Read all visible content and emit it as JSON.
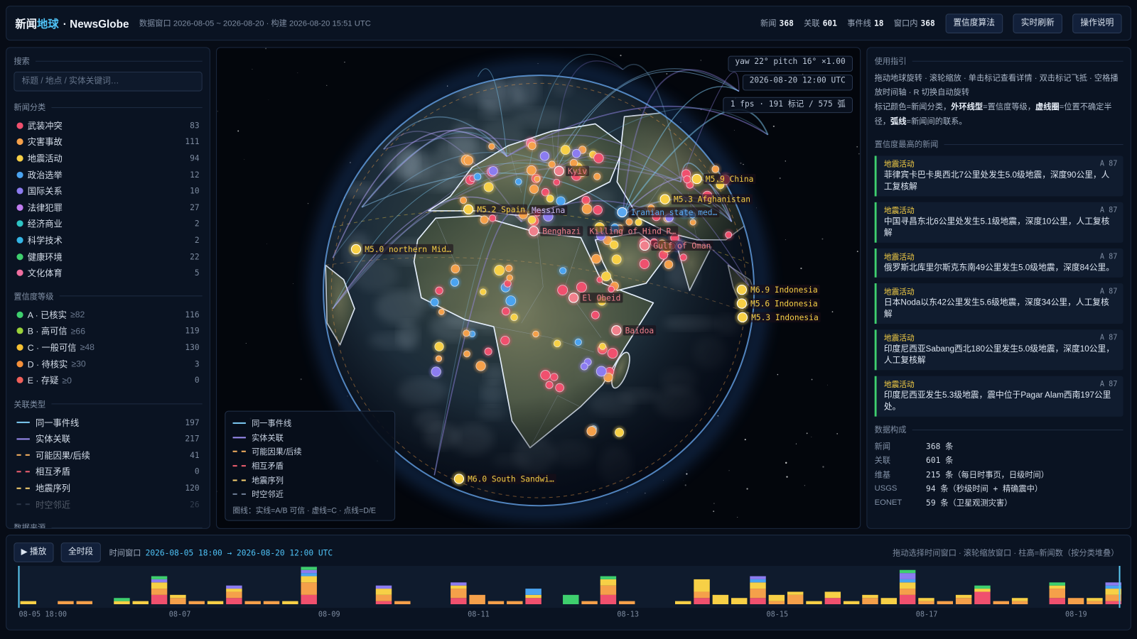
{
  "header": {
    "brand_a": "新闻",
    "brand_b": "地球",
    "brand_c": "· NewsGlobe",
    "meta": "数据窗口 2026-08-05 ~ 2026-08-20 · 构建 2026-08-20 15:51 UTC",
    "stats": [
      {
        "label": "新闻",
        "value": 368
      },
      {
        "label": "关联",
        "value": 601
      },
      {
        "label": "事件线",
        "value": 18
      },
      {
        "label": "窗口内",
        "value": 368
      }
    ],
    "buttons": [
      "置信度算法",
      "实时刷新",
      "操作说明"
    ]
  },
  "left": {
    "search_title": "搜索",
    "search_placeholder": "标题 / 地点 / 实体关键词…",
    "categories": {
      "title": "新闻分类",
      "items": [
        {
          "name": "武装冲突",
          "count": 83,
          "color": "#f0506e"
        },
        {
          "name": "灾害事故",
          "count": 111,
          "color": "#f5a04a"
        },
        {
          "name": "地震活动",
          "count": 94,
          "color": "#f7d046"
        },
        {
          "name": "政治选举",
          "count": 12,
          "color": "#4aa3f0"
        },
        {
          "name": "国际关系",
          "count": 10,
          "color": "#8c7cf0"
        },
        {
          "name": "法律犯罪",
          "count": 27,
          "color": "#c07cf0"
        },
        {
          "name": "经济商业",
          "count": 2,
          "color": "#2ec4c4"
        },
        {
          "name": "科学技术",
          "count": 2,
          "color": "#33b5e5"
        },
        {
          "name": "健康环境",
          "count": 22,
          "color": "#3ecf6e"
        },
        {
          "name": "文化体育",
          "count": 5,
          "color": "#f06fa0"
        }
      ]
    },
    "confidence": {
      "title": "置信度等级",
      "items": [
        {
          "name": "A · 已核实",
          "threshold": "≥82",
          "count": 116,
          "color": "#3ecf6e"
        },
        {
          "name": "B · 高可信",
          "threshold": "≥66",
          "count": 119,
          "color": "#9ad23a"
        },
        {
          "name": "C · 一般可信",
          "threshold": "≥48",
          "count": 130,
          "color": "#f5c033"
        },
        {
          "name": "D · 待核实",
          "threshold": "≥30",
          "count": 3,
          "color": "#f5903a"
        },
        {
          "name": "E · 存疑",
          "threshold": "≥0",
          "count": 0,
          "color": "#f0605a"
        }
      ]
    },
    "relations": {
      "title": "关联类型",
      "items": [
        {
          "name": "同一事件线",
          "count": 197,
          "color": "#7cc8f0",
          "style": "solid"
        },
        {
          "name": "实体关联",
          "count": 217,
          "color": "#9a8cf0",
          "style": "solid"
        },
        {
          "name": "可能因果/后续",
          "count": 41,
          "color": "#f5b060",
          "style": "dashed"
        },
        {
          "name": "相互矛盾",
          "count": 0,
          "color": "#f06070",
          "style": "dashed"
        },
        {
          "name": "地震序列",
          "count": 120,
          "color": "#f7d070",
          "style": "dashed"
        },
        {
          "name": "时空邻近",
          "count": 26,
          "color": "#6a7890",
          "style": "dashed",
          "disabled": true
        }
      ]
    },
    "sources_title": "数据来源"
  },
  "globe": {
    "view": "yaw 22° pitch 16° ×1.00",
    "time": "2026-08-20 12:00 UTC",
    "perf": "1 fps · 191 标记 / 575 弧",
    "labels": [
      {
        "text": "M5.9 China",
        "color": "#f7d046"
      },
      {
        "text": "Kyiv",
        "color": "#f0808c"
      },
      {
        "text": "M5.3 Afghanistan",
        "color": "#f7d046"
      },
      {
        "text": "M5.2 Spain",
        "color": "#f7d046"
      },
      {
        "text": "Messina",
        "color": "#c9b8f0"
      },
      {
        "text": "Iranian state med…",
        "color": "#5aa8f0"
      },
      {
        "text": "M5.0 northern Mid…",
        "color": "#f7d046"
      },
      {
        "text": "Benghazi",
        "color": "#f0808c"
      },
      {
        "text": "Killing of Hind R…",
        "color": "#f0808c"
      },
      {
        "text": "Gulf of Oman",
        "color": "#f0808c"
      },
      {
        "text": "M6.9 Indonesia",
        "color": "#f7d046"
      },
      {
        "text": "M5.6 Indonesia",
        "color": "#f7d046"
      },
      {
        "text": "M5.3 Indonesia",
        "color": "#f7d046"
      },
      {
        "text": "El Obeid",
        "color": "#f0808c"
      },
      {
        "text": "Baidoa",
        "color": "#f0808c"
      },
      {
        "text": "M6.0 South Sandwi…",
        "color": "#f7d046"
      }
    ],
    "legend_note": "圈线：实线=A/B 可信 · 虚线=C · 点线=D/E"
  },
  "right": {
    "guide_title": "使用指引",
    "guide_1": "拖动地球旋转 · 滚轮缩放 · 单击标记查看详情 · 双击标记飞抵 · 空格播放时间轴 · R 切换自动旋转",
    "guide_2": [
      {
        "text": "标记颜色=新闻分类，"
      },
      {
        "text": "外环线型",
        "bold": true
      },
      {
        "text": "=置信度等级，"
      },
      {
        "text": "虚线圈",
        "bold": true
      },
      {
        "text": "=位置不确定半径，"
      },
      {
        "text": "弧线",
        "bold": true
      },
      {
        "text": "=新闻间的联系。"
      }
    ],
    "top_title": "置信度最高的新闻",
    "top": [
      {
        "category": "地震活动",
        "grade": "A 87",
        "text": "菲律宾卡巴卡奥西北7公里处发生5.0级地震，深度90公里，人工复核解"
      },
      {
        "category": "地震活动",
        "grade": "A 87",
        "text": "中国寻昌东北6公里处发生5.1级地震，深度10公里，人工复核解"
      },
      {
        "category": "地震活动",
        "grade": "A 87",
        "text": "俄罗斯北库里尔斯克东南49公里发生5.0级地震，深度84公里。"
      },
      {
        "category": "地震活动",
        "grade": "A 87",
        "text": "日本Noda以东42公里发生5.6级地震，深度34公里，人工复核解"
      },
      {
        "category": "地震活动",
        "grade": "A 87",
        "text": "印度尼西亚Sabang西北180公里发生5.0级地震，深度10公里，人工复核解"
      },
      {
        "category": "地震活动",
        "grade": "A 87",
        "text": "印度尼西亚发生5.3级地震，震中位于Pagar Alam西南197公里处。"
      }
    ],
    "composition_title": "数据构成",
    "composition": [
      {
        "label": "新闻",
        "value": "368 条"
      },
      {
        "label": "关联",
        "value": "601 条"
      },
      {
        "label": "维基",
        "value": "215 条（每日时事页，日级时间）"
      },
      {
        "label": "USGS",
        "value": "94 条（秒级时间 + 精确震中）"
      },
      {
        "label": "EONET",
        "value": "59 条（卫星观测灾害）"
      }
    ]
  },
  "timeline": {
    "play": "▶ 播放",
    "all": "全时段",
    "window_label": "时间窗口",
    "window_range": "2026-08-05 18:00 → 2026-08-20 12:00 UTC",
    "hint": "拖动选择时间窗口 · 滚轮缩放窗口 · 柱高=新闻数（按分类堆叠）",
    "axis_labels": [
      "08-05 18:00",
      "08-07",
      "08-09",
      "08-11",
      "08-13",
      "08-15",
      "08-17",
      "08-19"
    ],
    "series": [
      {
        "color": "#f0506e",
        "values": [
          0,
          0,
          0,
          0,
          0,
          0,
          0,
          3,
          0,
          0,
          0,
          2,
          0,
          0,
          0,
          3,
          0,
          0,
          0,
          1,
          0,
          0,
          0,
          2,
          0,
          0,
          0,
          2,
          0,
          0,
          0,
          3,
          0,
          0,
          0,
          0,
          2,
          0,
          0,
          2,
          0,
          0,
          0,
          2,
          0,
          0,
          0,
          3,
          0,
          0,
          0,
          4,
          0,
          0,
          0,
          2,
          0,
          0,
          1
        ]
      },
      {
        "color": "#f5a04a",
        "values": [
          0,
          0,
          1,
          1,
          0,
          0,
          0,
          2,
          2,
          1,
          0,
          2,
          1,
          1,
          0,
          4,
          0,
          0,
          0,
          2,
          1,
          0,
          0,
          3,
          3,
          1,
          1,
          0,
          0,
          0,
          1,
          3,
          1,
          0,
          0,
          0,
          2,
          0,
          0,
          3,
          1,
          3,
          0,
          0,
          0,
          2,
          0,
          2,
          1,
          1,
          2,
          0,
          1,
          1,
          0,
          3,
          2,
          1,
          2
        ]
      },
      {
        "color": "#f7d046",
        "values": [
          1,
          0,
          0,
          0,
          0,
          1,
          1,
          2,
          1,
          0,
          1,
          1,
          0,
          0,
          1,
          2,
          0,
          0,
          0,
          2,
          0,
          0,
          0,
          1,
          0,
          0,
          0,
          1,
          0,
          0,
          0,
          2,
          0,
          0,
          0,
          1,
          4,
          3,
          2,
          2,
          2,
          1,
          1,
          2,
          1,
          1,
          2,
          2,
          1,
          0,
          1,
          1,
          0,
          1,
          0,
          1,
          0,
          1,
          2
        ]
      },
      {
        "color": "#4aa3f0",
        "values": [
          0,
          0,
          0,
          0,
          0,
          0,
          0,
          0,
          0,
          0,
          0,
          0,
          0,
          0,
          0,
          1,
          0,
          0,
          0,
          0,
          0,
          0,
          0,
          0,
          0,
          0,
          0,
          2,
          0,
          0,
          0,
          0,
          0,
          0,
          0,
          0,
          0,
          0,
          0,
          1,
          0,
          0,
          0,
          0,
          0,
          0,
          0,
          1,
          0,
          0,
          0,
          0,
          0,
          0,
          0,
          0,
          0,
          0,
          1
        ]
      },
      {
        "color": "#8c7cf0",
        "values": [
          0,
          0,
          0,
          0,
          0,
          0,
          0,
          1,
          0,
          0,
          0,
          1,
          0,
          0,
          0,
          1,
          0,
          0,
          0,
          1,
          0,
          0,
          0,
          1,
          0,
          0,
          0,
          0,
          0,
          0,
          0,
          0,
          0,
          0,
          0,
          0,
          0,
          0,
          0,
          1,
          0,
          0,
          0,
          0,
          0,
          0,
          0,
          2,
          0,
          0,
          0,
          0,
          0,
          0,
          0,
          0,
          0,
          0,
          1
        ]
      },
      {
        "color": "#3ecf6e",
        "values": [
          0,
          0,
          0,
          0,
          0,
          1,
          0,
          1,
          0,
          0,
          0,
          0,
          0,
          0,
          0,
          1,
          0,
          0,
          0,
          0,
          0,
          0,
          0,
          0,
          0,
          0,
          0,
          0,
          0,
          3,
          0,
          1,
          0,
          0,
          0,
          0,
          0,
          0,
          0,
          0,
          0,
          0,
          0,
          0,
          0,
          0,
          0,
          1,
          0,
          0,
          0,
          1,
          0,
          0,
          0,
          1,
          0,
          0,
          0
        ]
      }
    ]
  }
}
